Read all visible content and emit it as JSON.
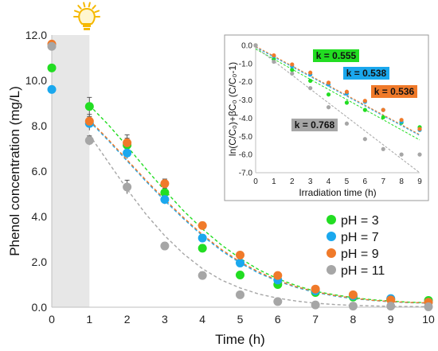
{
  "chart_data": [
    {
      "type": "scatter",
      "xlabel": "Time (h)",
      "ylabel": "Phenol concentration (mg/L)",
      "xlim": [
        0,
        10
      ],
      "ylim": [
        0,
        12
      ],
      "xticks": [
        "0",
        "1",
        "2",
        "3",
        "4",
        "5",
        "6",
        "7",
        "8",
        "9",
        "10"
      ],
      "yticks": [
        "0.0",
        "2.0",
        "4.0",
        "6.0",
        "8.0",
        "10.0",
        "12.0"
      ],
      "shaded_region_x": [
        0,
        1
      ],
      "lamp_icon": "lightbulb-icon",
      "legend_position": "bottom-right",
      "series": [
        {
          "name": "pH = 3",
          "color": "#22dd22",
          "x": [
            0,
            1,
            2,
            3,
            4,
            5,
            6,
            7,
            8,
            9,
            10
          ],
          "y": [
            10.55,
            8.85,
            7.15,
            5.05,
            2.6,
            1.42,
            1.0,
            0.65,
            0.45,
            0.35,
            0.3
          ],
          "err": [
            0,
            0.4,
            0.3,
            0.2,
            0.15,
            0.1,
            0.1,
            0.1,
            0.1,
            0.1,
            0.1
          ],
          "fit_x": [
            1,
            1.5,
            2,
            2.5,
            3,
            3.5,
            4,
            4.5,
            5,
            5.5,
            6,
            6.5,
            7,
            7.5,
            8,
            8.5,
            9,
            9.5,
            10
          ],
          "fit_y": [
            8.9,
            8.05,
            7.1,
            6.1,
            5.15,
            4.25,
            3.45,
            2.75,
            2.15,
            1.65,
            1.25,
            0.95,
            0.7,
            0.55,
            0.42,
            0.33,
            0.27,
            0.22,
            0.2
          ]
        },
        {
          "name": "pH = 7",
          "color": "#1aa8ee",
          "x": [
            0,
            1,
            2,
            3,
            4,
            5,
            6,
            7,
            8,
            9,
            10
          ],
          "y": [
            9.6,
            8.1,
            6.8,
            4.75,
            3.05,
            1.95,
            1.2,
            0.72,
            0.5,
            0.38,
            0.22
          ],
          "err": [
            0,
            0.3,
            0.25,
            0.2,
            0.15,
            0.1,
            0.1,
            0.1,
            0.1,
            0.1,
            0.1
          ],
          "fit_x": [
            1,
            1.5,
            2,
            2.5,
            3,
            3.5,
            4,
            4.5,
            5,
            5.5,
            6,
            6.5,
            7,
            7.5,
            8,
            8.5,
            9,
            9.5,
            10
          ],
          "fit_y": [
            8.2,
            7.35,
            6.45,
            5.55,
            4.7,
            3.9,
            3.15,
            2.5,
            1.95,
            1.5,
            1.15,
            0.87,
            0.65,
            0.5,
            0.38,
            0.3,
            0.24,
            0.2,
            0.18
          ]
        },
        {
          "name": "pH = 9",
          "color": "#f07a2a",
          "x": [
            0,
            1,
            2,
            3,
            4,
            5,
            6,
            7,
            8,
            9,
            10
          ],
          "y": [
            11.6,
            8.2,
            7.25,
            5.45,
            3.6,
            2.3,
            1.4,
            0.8,
            0.55,
            0.32,
            0.22
          ],
          "err": [
            0,
            0.3,
            0.35,
            0.2,
            0.15,
            0.1,
            0.1,
            0.1,
            0.1,
            0.1,
            0.1
          ],
          "fit_x": [
            1,
            1.5,
            2,
            2.5,
            3,
            3.5,
            4,
            4.5,
            5,
            5.5,
            6,
            6.5,
            7,
            7.5,
            8,
            8.5,
            9,
            9.5,
            10
          ],
          "fit_y": [
            8.25,
            7.4,
            6.5,
            5.6,
            4.75,
            3.95,
            3.2,
            2.55,
            2.0,
            1.55,
            1.18,
            0.9,
            0.68,
            0.52,
            0.4,
            0.31,
            0.25,
            0.21,
            0.19
          ]
        },
        {
          "name": "pH = 11",
          "color": "#a6a6a6",
          "x": [
            0,
            1,
            2,
            3,
            4,
            5,
            6,
            7,
            8,
            9,
            10
          ],
          "y": [
            11.5,
            7.35,
            5.3,
            2.7,
            1.4,
            0.55,
            0.25,
            0.1,
            0.05,
            0.05,
            0.02
          ],
          "err": [
            0,
            0.2,
            0.3,
            0.15,
            0.15,
            0.1,
            0.05,
            0.05,
            0.05,
            0.05,
            0.05
          ],
          "fit_x": [
            1,
            1.5,
            2,
            2.5,
            3,
            3.5,
            4,
            4.5,
            5,
            5.5,
            6,
            6.5,
            7,
            7.5,
            8,
            8.5,
            9,
            9.5,
            10
          ],
          "fit_y": [
            7.6,
            6.4,
            5.2,
            4.1,
            3.15,
            2.35,
            1.7,
            1.2,
            0.85,
            0.58,
            0.4,
            0.27,
            0.18,
            0.12,
            0.08,
            0.06,
            0.04,
            0.03,
            0.02
          ]
        }
      ]
    },
    {
      "type": "scatter",
      "xlabel": "Irradiation time (h)",
      "ylabel": "ln(C/C₀)+βC₀ (C/C₀-1)",
      "xlim": [
        0,
        9
      ],
      "ylim": [
        -7,
        0
      ],
      "xticks": [
        "0",
        "1",
        "2",
        "3",
        "4",
        "5",
        "6",
        "7",
        "8",
        "9"
      ],
      "yticks": [
        "0.0",
        "-1.0",
        "-2.0",
        "-3.0",
        "-4.0",
        "-5.0",
        "-6.0",
        "-7.0"
      ],
      "series": [
        {
          "name": "pH = 3",
          "color": "#22dd22",
          "k_label": "k = 0.555",
          "x": [
            0,
            1,
            2,
            3,
            4,
            5,
            6,
            7,
            8,
            9
          ],
          "y": [
            0,
            -0.75,
            -1.35,
            -1.95,
            -2.7,
            -3.15,
            -3.55,
            -3.95,
            -4.25,
            -4.5
          ],
          "fit_x": [
            0,
            9
          ],
          "fit_y": [
            -0.2,
            -5.2
          ]
        },
        {
          "name": "pH = 7",
          "color": "#1aa8ee",
          "k_label": "k = 0.538",
          "x": [
            0,
            1,
            2,
            3,
            4,
            5,
            6,
            7,
            8,
            9
          ],
          "y": [
            0,
            -0.6,
            -1.15,
            -1.6,
            -2.15,
            -2.65,
            -3.1,
            -3.55,
            -4.2,
            -4.65
          ],
          "fit_x": [
            0,
            9
          ],
          "fit_y": [
            -0.1,
            -4.95
          ]
        },
        {
          "name": "pH = 9",
          "color": "#f07a2a",
          "k_label": "k = 0.536",
          "x": [
            0,
            1,
            2,
            3,
            4,
            5,
            6,
            7,
            8,
            9
          ],
          "y": [
            0,
            -0.55,
            -1.05,
            -1.5,
            -2.05,
            -2.55,
            -3.05,
            -3.55,
            -4.1,
            -4.6
          ],
          "fit_x": [
            0,
            9
          ],
          "fit_y": [
            -0.05,
            -4.9
          ]
        },
        {
          "name": "pH = 11",
          "color": "#a6a6a6",
          "k_label": "k = 0.768",
          "x": [
            0,
            1,
            2,
            3,
            4,
            5,
            6,
            7,
            8,
            9
          ],
          "y": [
            0,
            -0.9,
            -1.55,
            -2.35,
            -3.4,
            -4.3,
            -5.15,
            -5.7,
            -6.0,
            -6.0
          ],
          "fit_x": [
            0,
            9
          ],
          "fit_y": [
            -0.1,
            -7.0
          ]
        }
      ]
    }
  ]
}
